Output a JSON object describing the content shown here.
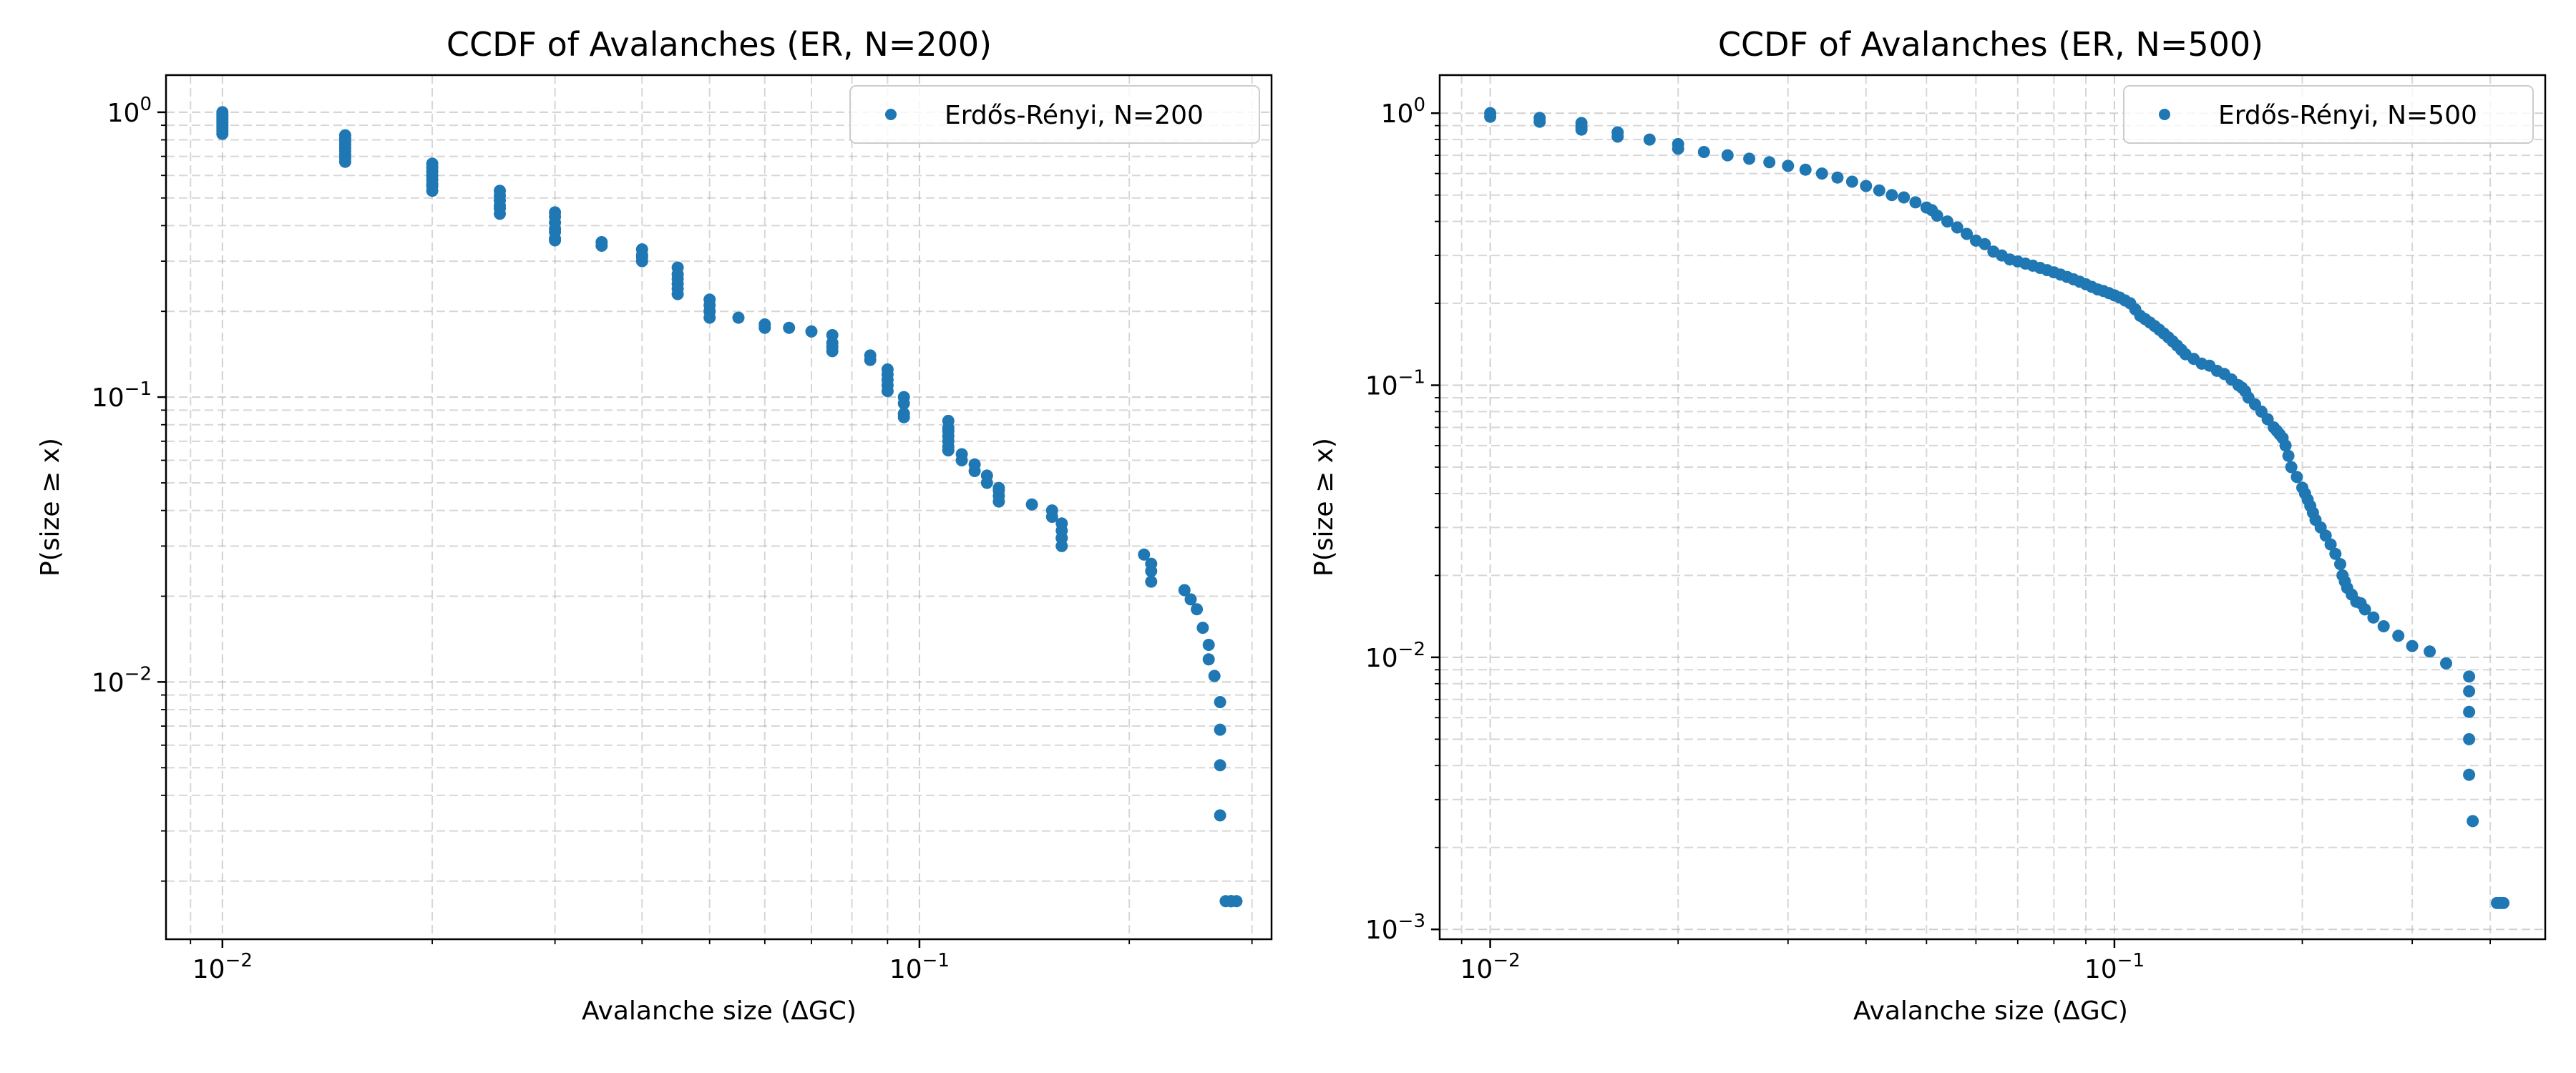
{
  "chart_data": [
    {
      "type": "scatter",
      "title": "CCDF of Avalanches (ER, N=200)",
      "xlabel": "Avalanche size (ΔGC)",
      "ylabel": "P(size ≥ x)",
      "xscale": "log",
      "yscale": "log",
      "xlim": [
        0.0083,
        0.32
      ],
      "ylim": [
        0.00125,
        1.35
      ],
      "xticks": [
        {
          "base": "10",
          "exp": "−2",
          "value": 0.01
        },
        {
          "base": "10",
          "exp": "−1",
          "value": 0.1
        }
      ],
      "yticks": [
        {
          "base": "10",
          "exp": "−2",
          "value": 0.01
        },
        {
          "base": "10",
          "exp": "−1",
          "value": 0.1
        },
        {
          "base": "10",
          "exp": "0",
          "value": 1
        }
      ],
      "grid": true,
      "legend_position": "top-right",
      "color": "#1f77b4",
      "series": [
        {
          "name": "Erdős-Rényi, N=200",
          "x": [
            0.01,
            0.01,
            0.01,
            0.01,
            0.01,
            0.01,
            0.01,
            0.01,
            0.01,
            0.015,
            0.015,
            0.015,
            0.015,
            0.015,
            0.015,
            0.015,
            0.015,
            0.015,
            0.02,
            0.02,
            0.02,
            0.02,
            0.02,
            0.02,
            0.02,
            0.02,
            0.025,
            0.025,
            0.025,
            0.025,
            0.025,
            0.025,
            0.03,
            0.03,
            0.03,
            0.03,
            0.03,
            0.03,
            0.03,
            0.035,
            0.035,
            0.04,
            0.04,
            0.04,
            0.04,
            0.045,
            0.045,
            0.045,
            0.045,
            0.045,
            0.045,
            0.05,
            0.05,
            0.05,
            0.05,
            0.05,
            0.05,
            0.055,
            0.06,
            0.06,
            0.065,
            0.07,
            0.075,
            0.075,
            0.075,
            0.075,
            0.085,
            0.085,
            0.09,
            0.09,
            0.09,
            0.09,
            0.09,
            0.095,
            0.095,
            0.095,
            0.095,
            0.11,
            0.11,
            0.11,
            0.11,
            0.11,
            0.11,
            0.11,
            0.115,
            0.115,
            0.12,
            0.12,
            0.125,
            0.125,
            0.13,
            0.13,
            0.13,
            0.13,
            0.145,
            0.155,
            0.155,
            0.16,
            0.16,
            0.16,
            0.16,
            0.16,
            0.21,
            0.215,
            0.215,
            0.215,
            0.24,
            0.245,
            0.25,
            0.255,
            0.26,
            0.26,
            0.265,
            0.27,
            0.27,
            0.27,
            0.27,
            0.275,
            0.28,
            0.28,
            0.28,
            0.285
          ],
          "y": [
            1.0,
            0.98,
            0.96,
            0.94,
            0.92,
            0.9,
            0.88,
            0.86,
            0.84,
            0.83,
            0.81,
            0.79,
            0.77,
            0.75,
            0.73,
            0.71,
            0.69,
            0.67,
            0.66,
            0.64,
            0.62,
            0.6,
            0.58,
            0.56,
            0.55,
            0.53,
            0.53,
            0.51,
            0.49,
            0.47,
            0.46,
            0.44,
            0.445,
            0.43,
            0.41,
            0.39,
            0.38,
            0.36,
            0.355,
            0.35,
            0.34,
            0.33,
            0.315,
            0.31,
            0.3,
            0.285,
            0.27,
            0.26,
            0.25,
            0.24,
            0.23,
            0.22,
            0.21,
            0.2,
            0.2,
            0.2,
            0.19,
            0.19,
            0.18,
            0.175,
            0.175,
            0.17,
            0.165,
            0.155,
            0.15,
            0.145,
            0.14,
            0.135,
            0.125,
            0.12,
            0.115,
            0.11,
            0.105,
            0.1,
            0.095,
            0.0875,
            0.085,
            0.0825,
            0.078,
            0.076,
            0.073,
            0.07,
            0.067,
            0.065,
            0.063,
            0.06,
            0.058,
            0.055,
            0.053,
            0.05,
            0.048,
            0.047,
            0.045,
            0.043,
            0.042,
            0.04,
            0.038,
            0.036,
            0.034,
            0.032,
            0.032,
            0.03,
            0.028,
            0.026,
            0.0245,
            0.0225,
            0.021,
            0.0195,
            0.018,
            0.0155,
            0.0135,
            0.012,
            0.0105,
            0.0085,
            0.0068,
            0.0051,
            0.0034,
            0.0017,
            0.0017,
            0.0017,
            0.0017,
            0.0017
          ]
        }
      ]
    },
    {
      "type": "scatter",
      "title": "CCDF of Avalanches (ER, N=500)",
      "xlabel": "Avalanche size (ΔGC)",
      "ylabel": "P(size ≥ x)",
      "xscale": "log",
      "yscale": "log",
      "xlim": [
        0.0083,
        0.49
      ],
      "ylim": [
        0.00092,
        1.38
      ],
      "xticks": [
        {
          "base": "10",
          "exp": "−2",
          "value": 0.01
        },
        {
          "base": "10",
          "exp": "−1",
          "value": 0.1
        }
      ],
      "yticks": [
        {
          "base": "10",
          "exp": "−3",
          "value": 0.001
        },
        {
          "base": "10",
          "exp": "−2",
          "value": 0.01
        },
        {
          "base": "10",
          "exp": "−1",
          "value": 0.1
        },
        {
          "base": "10",
          "exp": "0",
          "value": 1
        }
      ],
      "grid": true,
      "legend_position": "top-right",
      "color": "#1f77b4",
      "series": [
        {
          "name": "Erdős-Rényi, N=500",
          "x": [
            0.01,
            0.01,
            0.012,
            0.012,
            0.014,
            0.014,
            0.014,
            0.016,
            0.016,
            0.018,
            0.02,
            0.02,
            0.022,
            0.024,
            0.026,
            0.028,
            0.03,
            0.032,
            0.034,
            0.036,
            0.038,
            0.04,
            0.042,
            0.044,
            0.046,
            0.048,
            0.05,
            0.051,
            0.052,
            0.054,
            0.056,
            0.058,
            0.06,
            0.062,
            0.064,
            0.066,
            0.068,
            0.07,
            0.072,
            0.074,
            0.076,
            0.078,
            0.08,
            0.082,
            0.084,
            0.086,
            0.088,
            0.09,
            0.092,
            0.094,
            0.096,
            0.098,
            0.1,
            0.102,
            0.104,
            0.106,
            0.108,
            0.11,
            0.112,
            0.114,
            0.116,
            0.118,
            0.12,
            0.122,
            0.124,
            0.126,
            0.128,
            0.13,
            0.134,
            0.138,
            0.142,
            0.146,
            0.15,
            0.154,
            0.158,
            0.16,
            0.162,
            0.164,
            0.168,
            0.172,
            0.176,
            0.18,
            0.182,
            0.184,
            0.186,
            0.188,
            0.19,
            0.192,
            0.196,
            0.2,
            0.202,
            0.204,
            0.206,
            0.208,
            0.21,
            0.214,
            0.218,
            0.222,
            0.226,
            0.23,
            0.232,
            0.234,
            0.236,
            0.24,
            0.244,
            0.248,
            0.252,
            0.26,
            0.27,
            0.285,
            0.3,
            0.32,
            0.34,
            0.37,
            0.37,
            0.37,
            0.37,
            0.37,
            0.375,
            0.41,
            0.415,
            0.42
          ],
          "y": [
            1.0,
            0.97,
            0.96,
            0.93,
            0.92,
            0.89,
            0.87,
            0.85,
            0.82,
            0.8,
            0.77,
            0.74,
            0.72,
            0.7,
            0.68,
            0.66,
            0.64,
            0.62,
            0.6,
            0.58,
            0.56,
            0.54,
            0.52,
            0.5,
            0.49,
            0.47,
            0.45,
            0.44,
            0.42,
            0.4,
            0.38,
            0.36,
            0.34,
            0.33,
            0.31,
            0.3,
            0.29,
            0.285,
            0.28,
            0.275,
            0.27,
            0.265,
            0.26,
            0.255,
            0.25,
            0.245,
            0.24,
            0.235,
            0.23,
            0.225,
            0.222,
            0.218,
            0.214,
            0.21,
            0.205,
            0.2,
            0.19,
            0.18,
            0.175,
            0.17,
            0.165,
            0.16,
            0.155,
            0.15,
            0.145,
            0.14,
            0.135,
            0.13,
            0.125,
            0.12,
            0.118,
            0.113,
            0.11,
            0.105,
            0.1,
            0.098,
            0.095,
            0.09,
            0.085,
            0.08,
            0.075,
            0.07,
            0.068,
            0.066,
            0.064,
            0.06,
            0.055,
            0.05,
            0.046,
            0.042,
            0.04,
            0.038,
            0.036,
            0.034,
            0.032,
            0.03,
            0.028,
            0.026,
            0.024,
            0.022,
            0.02,
            0.019,
            0.018,
            0.017,
            0.016,
            0.0158,
            0.015,
            0.014,
            0.013,
            0.012,
            0.011,
            0.0105,
            0.0095,
            0.0085,
            0.0075,
            0.0063,
            0.005,
            0.0037,
            0.0025,
            0.00125,
            0.00125,
            0.00125
          ]
        }
      ]
    }
  ]
}
